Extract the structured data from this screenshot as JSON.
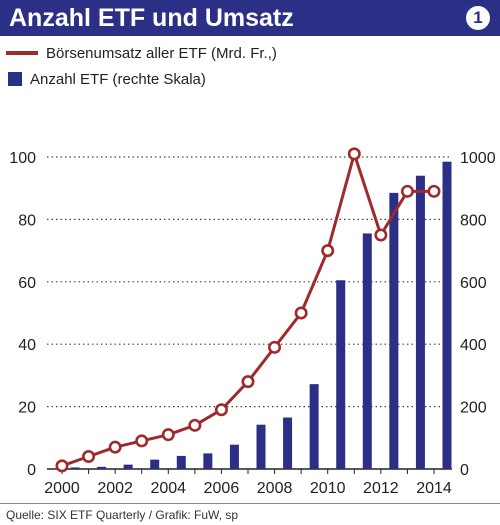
{
  "header": {
    "title": "Anzahl ETF und Umsatz",
    "badge": "1"
  },
  "legend": {
    "line_label": "Börsenumsatz aller ETF (Mrd. Fr.,)",
    "bar_label": "Anzahl ETF (rechte Skala)"
  },
  "colors": {
    "title_bg": "#2b2f86",
    "bar": "#2b2f86",
    "line": "#9e2a2b",
    "grid": "#444444"
  },
  "chart_data": {
    "type": "bar",
    "title": "Anzahl ETF und Umsatz",
    "x": [
      2000,
      2001,
      2002,
      2003,
      2004,
      2005,
      2006,
      2007,
      2008,
      2009,
      2010,
      2011,
      2012,
      2013,
      2014
    ],
    "x_tick_labels": [
      "2000",
      "2002",
      "2004",
      "2006",
      "2008",
      "2010",
      "2012",
      "2014"
    ],
    "series": [
      {
        "name": "Börsenumsatz aller ETF (Mrd. Fr.,)",
        "type": "line",
        "axis": "left",
        "values": [
          1,
          4,
          7,
          9,
          11,
          14,
          19,
          28,
          39,
          50,
          70,
          101,
          75,
          89,
          89
        ]
      },
      {
        "name": "Anzahl ETF (rechte Skala)",
        "type": "bar",
        "axis": "right",
        "values": [
          5,
          7,
          14,
          30,
          42,
          50,
          78,
          142,
          165,
          272,
          605,
          755,
          885,
          940,
          985
        ]
      }
    ],
    "y_left": {
      "ticks": [
        "0",
        "20",
        "40",
        "60",
        "80",
        "100"
      ],
      "ylim": [
        0,
        100
      ]
    },
    "y_right": {
      "ticks": [
        "0",
        "200",
        "400",
        "600",
        "800",
        "1000"
      ],
      "ylim": [
        0,
        1000
      ]
    },
    "grid": "horizontal dotted",
    "legend": "top-left"
  },
  "footer": {
    "source": "Quelle: SIX ETF Quarterly / Grafik: FuW, sp"
  }
}
